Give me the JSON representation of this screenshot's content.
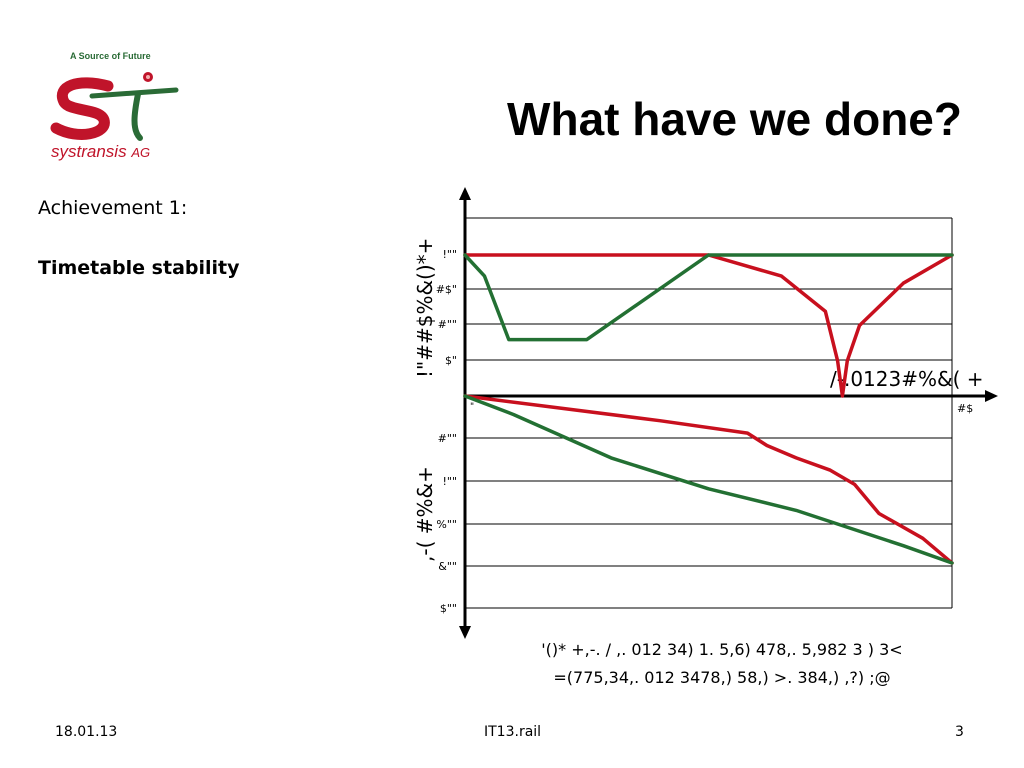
{
  "slide": {
    "title": "What have we done?",
    "achievement_label": "Achievement 1:",
    "achievement_value": "Timetable stability"
  },
  "logo": {
    "tagline": "A Source of Future",
    "company": "systransis",
    "suffix": "AG",
    "red": "#c0142a",
    "green": "#2a6b36"
  },
  "footer": {
    "date": "18.01.13",
    "center": "IT13.rail",
    "page": "3"
  },
  "chart_data": {
    "type": "line",
    "colors": {
      "red": "#c8101e",
      "green": "#237033",
      "axis": "#000000"
    },
    "top_panel": {
      "y_ticks": [
        "!\"\"",
        "#$\"",
        "#\"\"",
        "$\""
      ],
      "y_label": "!\"##$%&()*+",
      "x_tick_left": "\"",
      "x_tick_right": "#$",
      "x_label": "/-.0123#%&( +",
      "series": [
        {
          "name": "red",
          "points": [
            [
              0,
              1
            ],
            [
              0.5,
              1
            ],
            [
              0.65,
              0.85
            ],
            [
              0.74,
              0.6
            ],
            [
              0.765,
              0.25
            ],
            [
              0.775,
              0
            ],
            [
              0.785,
              0.25
            ],
            [
              0.81,
              0.5
            ],
            [
              0.9,
              0.8
            ],
            [
              1,
              1
            ]
          ]
        },
        {
          "name": "green",
          "points": [
            [
              0,
              1
            ],
            [
              0.04,
              0.85
            ],
            [
              0.09,
              0.4
            ],
            [
              0.25,
              0.4
            ],
            [
              0.5,
              1
            ],
            [
              1,
              1
            ]
          ]
        }
      ]
    },
    "bottom_panel": {
      "y_ticks": [
        "#\"\"",
        "!\"\"",
        "%\"\"",
        "&\"\"",
        "$\"\""
      ],
      "y_label": ",-( #%&+",
      "series": [
        {
          "name": "red",
          "points": [
            [
              0,
              0
            ],
            [
              0.2,
              0.2
            ],
            [
              0.4,
              0.4
            ],
            [
              0.58,
              0.6
            ],
            [
              0.62,
              0.8
            ],
            [
              0.68,
              1
            ],
            [
              0.75,
              1.2
            ],
            [
              0.8,
              1.43
            ],
            [
              0.85,
              1.9
            ],
            [
              0.94,
              2.3
            ],
            [
              1,
              2.7
            ]
          ]
        },
        {
          "name": "green",
          "points": [
            [
              0,
              0
            ],
            [
              0.1,
              0.3
            ],
            [
              0.3,
              1
            ],
            [
              0.5,
              1.5
            ],
            [
              0.68,
              1.85
            ],
            [
              0.9,
              2.42
            ],
            [
              1,
              2.7
            ]
          ]
        }
      ]
    },
    "caption_line1": "'()* +,-. / ,. 012 34) 1. 5,6) 478,. 5,982 3 ) 3<",
    "caption_line2": "=(775,34,. 012 3478,) 58,) >. 384,) ,?) ;@"
  }
}
